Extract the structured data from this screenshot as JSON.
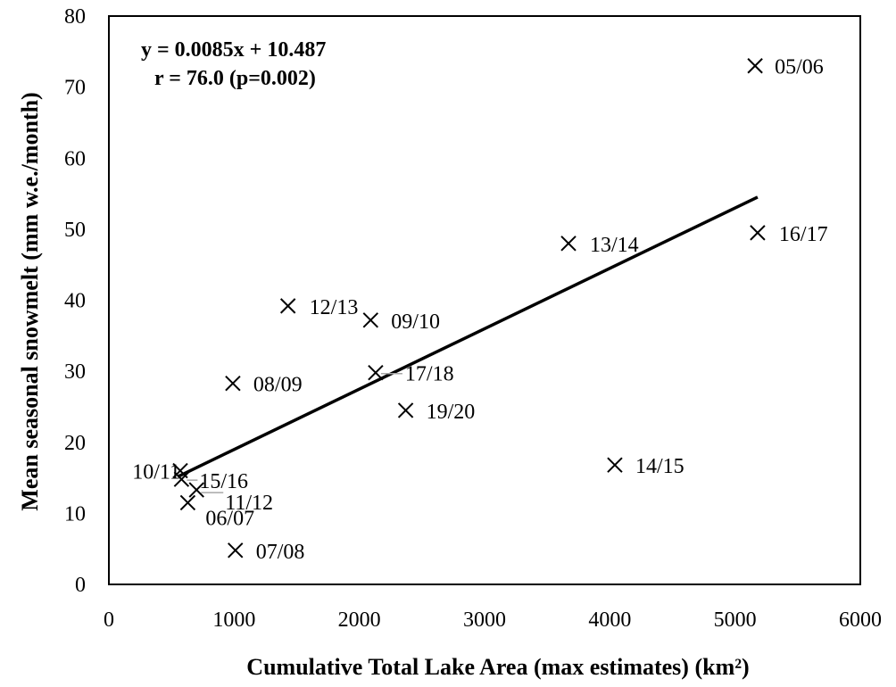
{
  "chart_data": {
    "type": "scatter",
    "xlabel": "Cumulative Total Lake Area (max estimates) (km²)",
    "ylabel": "Mean seasonal snowmelt (mm w.e./month)",
    "xlim": [
      0,
      6000
    ],
    "ylim": [
      0,
      80
    ],
    "x_ticks": [
      0,
      1000,
      2000,
      3000,
      4000,
      5000,
      6000
    ],
    "y_ticks": [
      0,
      10,
      20,
      30,
      40,
      50,
      60,
      70,
      80
    ],
    "grid": false,
    "legend": "none",
    "marker": "x",
    "points": [
      {
        "label": "05/06",
        "x": 5160,
        "y": 73.0
      },
      {
        "label": "06/07",
        "x": 630,
        "y": 11.5
      },
      {
        "label": "07/08",
        "x": 1010,
        "y": 4.8
      },
      {
        "label": "08/09",
        "x": 990,
        "y": 28.3
      },
      {
        "label": "09/10",
        "x": 2090,
        "y": 37.2
      },
      {
        "label": "10/11",
        "x": 570,
        "y": 16.0
      },
      {
        "label": "11/12",
        "x": 700,
        "y": 13.3
      },
      {
        "label": "12/13",
        "x": 1430,
        "y": 39.2
      },
      {
        "label": "13/14",
        "x": 3670,
        "y": 48.0
      },
      {
        "label": "14/15",
        "x": 4040,
        "y": 16.8
      },
      {
        "label": "15/16",
        "x": 580,
        "y": 14.8
      },
      {
        "label": "16/17",
        "x": 5180,
        "y": 49.5
      },
      {
        "label": "17/18",
        "x": 2130,
        "y": 29.8
      },
      {
        "label": "19/20",
        "x": 2370,
        "y": 24.5
      }
    ],
    "trendline": {
      "slope": 0.0085,
      "intercept": 10.487,
      "x_range": [
        550,
        5180
      ]
    },
    "annotations": {
      "equation": "y = 0.0085x + 10.487",
      "stats": "r = 76.0 (p=0.002)"
    }
  }
}
